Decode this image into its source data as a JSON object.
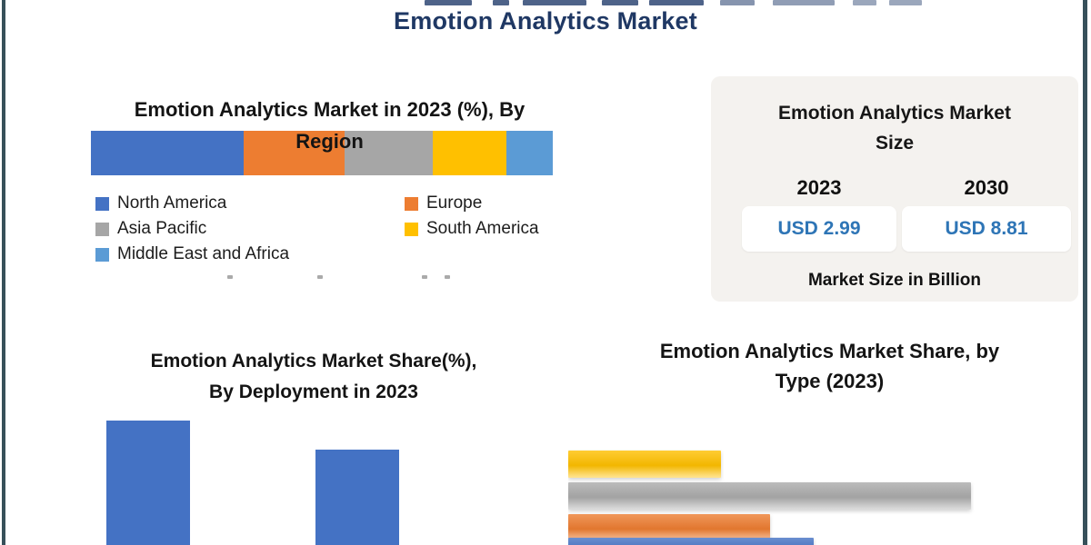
{
  "header": {
    "title": "Emotion Analytics Market"
  },
  "region_chart": {
    "title_line1": "Emotion Analytics Market in 2023 (%), By",
    "title_line2": "Region"
  },
  "market_size_card": {
    "title_line1": "Emotion Analytics Market",
    "title_line2": "Size",
    "items": [
      {
        "year": "2023",
        "value": "USD 2.99"
      },
      {
        "year": "2030",
        "value": "USD 8.81"
      }
    ],
    "footnote": "Market Size in Billion"
  },
  "deployment_chart": {
    "title_line1": "Emotion Analytics Market Share(%),",
    "title_line2": "By Deployment in 2023"
  },
  "type_chart": {
    "title_line1": "Emotion Analytics Market Share, by",
    "title_line2": "Type (2023)"
  },
  "colors": {
    "accent_navy": "#1f3864",
    "value_blue": "#2e75b6",
    "card_bg": "#f4f2ef",
    "frame_border": "#37505a"
  },
  "chart_data": [
    {
      "type": "bar",
      "variant": "stacked-horizontal",
      "title": "Emotion Analytics Market in 2023 (%), By Region",
      "categories": [
        "North America",
        "Europe",
        "Asia Pacific",
        "South America",
        "Middle East and Africa"
      ],
      "values": [
        33,
        22,
        19,
        16,
        10
      ],
      "unit": "%",
      "colors": [
        "#4472c4",
        "#ed7d31",
        "#a6a6a6",
        "#ffc000",
        "#5b9bd5"
      ],
      "legend_position": "below",
      "note": "segment values estimated from segment widths; no data labels visible in screenshot"
    },
    {
      "type": "table",
      "title": "Emotion Analytics Market Size",
      "columns": [
        "2023",
        "2030"
      ],
      "values": [
        "USD 2.99",
        "USD 8.81"
      ],
      "unit": "Market Size in Billion"
    },
    {
      "type": "bar",
      "variant": "vertical",
      "title": "Emotion Analytics Market Share(%), By Deployment in 2023",
      "categories": [
        "",
        ""
      ],
      "values": [
        100,
        77
      ],
      "value_basis": "relative height, tallest bar = 100; axis, labels and bar bottoms cropped out of screenshot",
      "color": "#4472c4",
      "legend_position": "none"
    },
    {
      "type": "bar",
      "variant": "horizontal",
      "title": "Emotion Analytics Market Share, by Type (2023)",
      "categories": [
        "",
        "",
        "",
        ""
      ],
      "values": [
        38,
        100,
        50,
        61
      ],
      "value_basis": "relative length, longest bar = 100; axis and category labels cropped out of screenshot",
      "colors": [
        "#ffc000",
        "#ababab",
        "#ed7d31",
        "#4472c4"
      ],
      "legend_position": "none"
    }
  ]
}
